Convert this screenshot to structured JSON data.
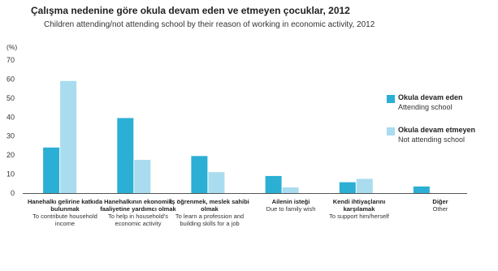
{
  "colors": {
    "attending": "#2bafd4",
    "not_attending": "#a9dcef",
    "axis": "#555555"
  },
  "chart_data": {
    "type": "bar",
    "title": "Çalışma nedenine göre okula devam eden ve etmeyen çocuklar, 2012",
    "subtitle": "Children attending/not attending school by their reason of working in economic activity, 2012",
    "ylabel": "(%)",
    "ylim": [
      0,
      70
    ],
    "yticks": [
      "0",
      "10",
      "20",
      "30",
      "40",
      "50",
      "60",
      "70"
    ],
    "categories": [
      {
        "tr": "Hanehalkı gelirine katkıda bulunmak",
        "en": "To contribute household income"
      },
      {
        "tr": "Hanehalkının ekonomik faaliyetine yardımcı olmak",
        "en": "To help in household's economic activity"
      },
      {
        "tr": "İş öğrenmek, meslek sahibi olmak",
        "en": "To learn a profession and building skills for a job"
      },
      {
        "tr": "Ailenin isteği",
        "en": "Due to family wish"
      },
      {
        "tr": "Kendi ihtiyaçlarını karşılamak",
        "en": "To support him/herself"
      },
      {
        "tr": "Diğer",
        "en": "Other"
      }
    ],
    "series": [
      {
        "name": "Okula devam eden",
        "name_en": "Attending school",
        "values": [
          24,
          39.5,
          19.5,
          9,
          5.7,
          3.5
        ]
      },
      {
        "name": "Okula devam etmeyen",
        "name_en": "Not attending school",
        "values": [
          59,
          17.5,
          11,
          3,
          7.5,
          0
        ]
      }
    ],
    "legend_position": "right",
    "grid": false
  }
}
